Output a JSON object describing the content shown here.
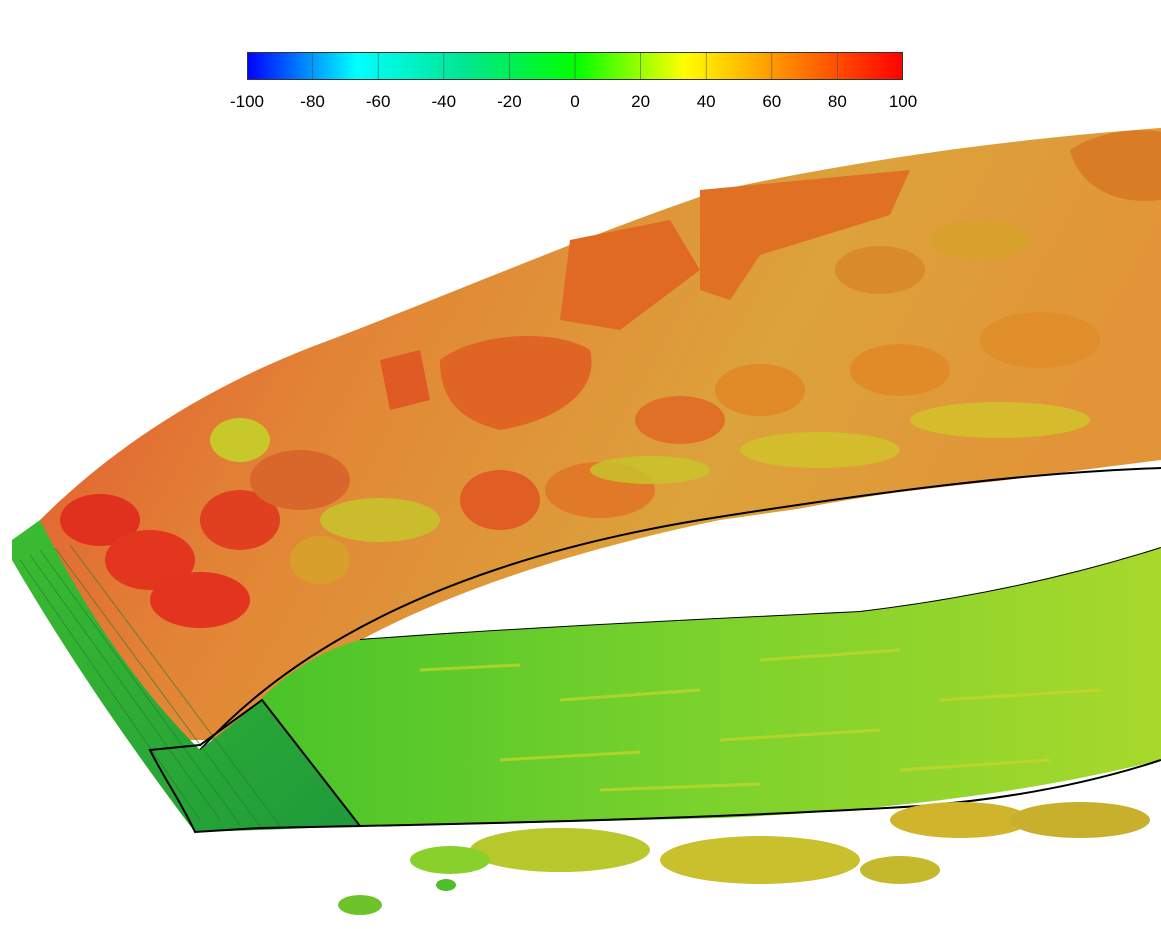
{
  "colorbar": {
    "min": -100,
    "max": 100,
    "tick_labels": [
      "-100",
      "-80",
      "-60",
      "-40",
      "-20",
      "0",
      "20",
      "40",
      "60",
      "80",
      "100"
    ],
    "stops": [
      "#0000ff",
      "#00ffff",
      "#00e690",
      "#00ff00",
      "#ffff00",
      "#ff8000",
      "#ff0000"
    ]
  },
  "scene": {
    "colors": {
      "surface_green": "#5ad22a",
      "surface_yellow": "#c8dc28",
      "vortex_orange": "#e07a24",
      "vortex_red": "#e03a1e",
      "vortex_yellow": "#d6c02a",
      "outline": "#000000"
    }
  }
}
